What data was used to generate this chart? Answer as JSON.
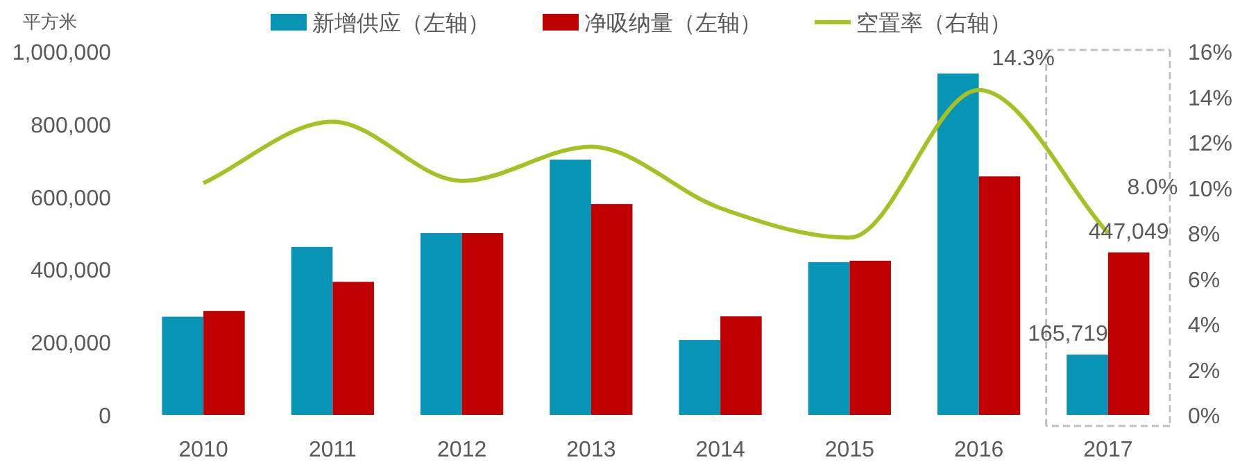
{
  "chart_data": {
    "type": "bar",
    "ylabel": "平方米",
    "categories": [
      "2010",
      "2011",
      "2012",
      "2013",
      "2014",
      "2015",
      "2016",
      "2017"
    ],
    "series": [
      {
        "name": "新增供应（左轴）",
        "color": "#0894b4",
        "values": [
          270000,
          462000,
          500000,
          702000,
          206000,
          420000,
          939000,
          165719
        ],
        "value_labels": [
          null,
          null,
          null,
          null,
          null,
          null,
          null,
          "165,719"
        ]
      },
      {
        "name": "净吸纳量（左轴）",
        "color": "#c00000",
        "values": [
          286000,
          366000,
          500000,
          580000,
          271000,
          424000,
          656000,
          447049
        ],
        "value_labels": [
          null,
          null,
          null,
          null,
          null,
          null,
          null,
          "447,049"
        ]
      },
      {
        "name": "空置率（右轴）",
        "type": "line",
        "axis": "y2",
        "color": "#a5c224",
        "values": [
          10.2,
          12.9,
          10.3,
          11.8,
          9.1,
          7.8,
          14.3,
          8.0
        ],
        "value_labels": [
          null,
          null,
          null,
          null,
          null,
          null,
          "14.3%",
          "8.0%"
        ]
      }
    ],
    "ylim": [
      0,
      1000000
    ],
    "yticks": [
      {
        "value": 0,
        "label": "0"
      },
      {
        "value": 200000,
        "label": "200,000"
      },
      {
        "value": 400000,
        "label": "400,000"
      },
      {
        "value": 600000,
        "label": "600,000"
      },
      {
        "value": 800000,
        "label": "800,000"
      },
      {
        "value": 1000000,
        "label": "1,000,000"
      }
    ],
    "y2lim": [
      0,
      16
    ],
    "y2ticks": [
      {
        "value": 0,
        "label": "0%"
      },
      {
        "value": 2,
        "label": "2%"
      },
      {
        "value": 4,
        "label": "4%"
      },
      {
        "value": 6,
        "label": "6%"
      },
      {
        "value": 8,
        "label": "8%"
      },
      {
        "value": 10,
        "label": "10%"
      },
      {
        "value": 12,
        "label": "12%"
      },
      {
        "value": 14,
        "label": "14%"
      },
      {
        "value": 16,
        "label": "16%"
      }
    ],
    "legend": "top",
    "grid": false,
    "marker": "none",
    "line_style": "solid"
  }
}
